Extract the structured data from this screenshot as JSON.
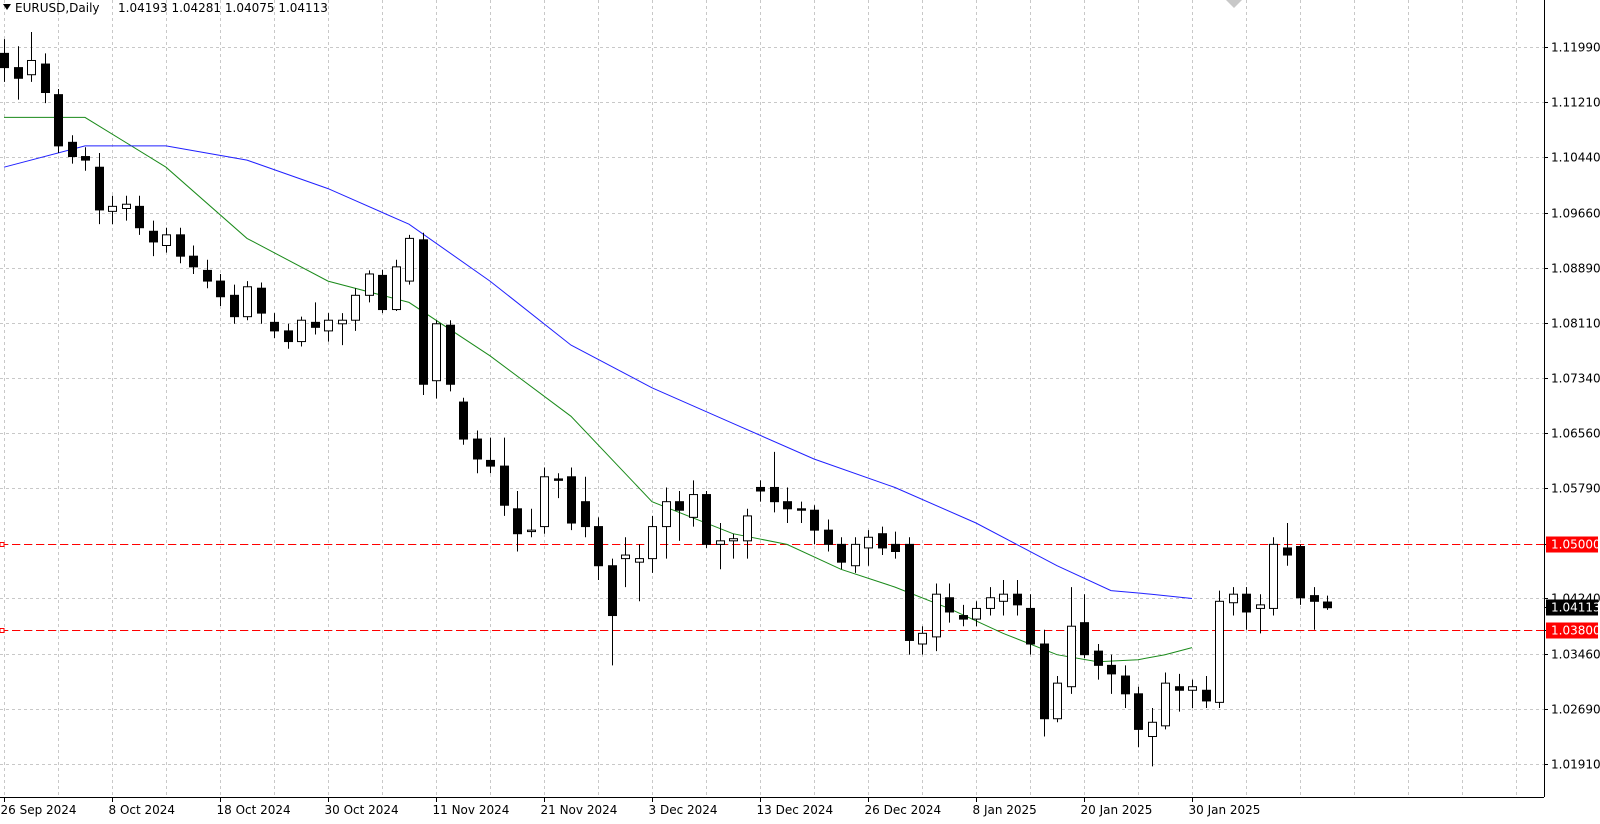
{
  "header": {
    "symbol": "EURUSD,Daily",
    "ohlc": "1.04193 1.04281 1.04075 1.04113"
  },
  "colors": {
    "background": "#ffffff",
    "grid": "#c8c8c8",
    "bull_body": "#ffffff",
    "bear_body": "#000000",
    "wick": "#000000",
    "ma_fast": "#1a8a1a",
    "ma_slow": "#2020ff",
    "level_line": "#ff0000",
    "level_tag": "#ff0000",
    "price_tag": "#000000"
  },
  "chart_data": {
    "type": "candlestick",
    "symbol": "EURUSD",
    "timeframe": "Daily",
    "ylim": [
      1.0145,
      1.1265
    ],
    "y_ticks": [
      "1.11990",
      "1.11210",
      "1.10440",
      "1.09660",
      "1.08890",
      "1.08110",
      "1.07340",
      "1.06560",
      "1.05790",
      "1.05000",
      "1.04240",
      "1.03800",
      "1.03460",
      "1.02690",
      "1.01910"
    ],
    "x_tick_labels": [
      "26 Sep 2024",
      "8 Oct 2024",
      "18 Oct 2024",
      "30 Oct 2024",
      "11 Nov 2024",
      "21 Nov 2024",
      "3 Dec 2024",
      "13 Dec 2024",
      "26 Dec 2024",
      "8 Jan 2025",
      "20 Jan 2025",
      "30 Jan 2025"
    ],
    "x_tick_index": [
      0,
      8,
      16,
      24,
      32,
      40,
      48,
      56,
      64,
      72,
      80,
      88
    ],
    "grid": true,
    "candles": [
      [
        1.119,
        1.121,
        1.115,
        1.117
      ],
      [
        1.117,
        1.12,
        1.1125,
        1.1155
      ],
      [
        1.116,
        1.122,
        1.115,
        1.118
      ],
      [
        1.1175,
        1.119,
        1.112,
        1.1135
      ],
      [
        1.1132,
        1.114,
        1.105,
        1.106
      ],
      [
        1.1065,
        1.1075,
        1.1035,
        1.1045
      ],
      [
        1.1045,
        1.1058,
        1.1025,
        1.104
      ],
      [
        1.103,
        1.105,
        1.095,
        1.097
      ],
      [
        1.0968,
        1.099,
        1.095,
        1.0975
      ],
      [
        1.0972,
        1.099,
        1.0955,
        1.0978
      ],
      [
        1.0975,
        1.099,
        1.0935,
        1.0945
      ],
      [
        1.094,
        1.0955,
        1.0905,
        1.0925
      ],
      [
        1.092,
        1.0945,
        1.091,
        1.0935
      ],
      [
        1.0935,
        1.0945,
        1.0895,
        1.0905
      ],
      [
        1.0905,
        1.092,
        1.088,
        1.089
      ],
      [
        1.0885,
        1.09,
        1.086,
        1.087
      ],
      [
        1.087,
        1.088,
        1.0835,
        1.0848
      ],
      [
        1.085,
        1.0865,
        1.081,
        1.082
      ],
      [
        1.082,
        1.087,
        1.0815,
        1.0862
      ],
      [
        1.086,
        1.0868,
        1.081,
        1.0825
      ],
      [
        1.0812,
        1.0825,
        1.079,
        1.08
      ],
      [
        1.08,
        1.081,
        1.0775,
        1.0785
      ],
      [
        1.0785,
        1.082,
        1.0778,
        1.0815
      ],
      [
        1.0812,
        1.084,
        1.0795,
        1.0805
      ],
      [
        1.08,
        1.0825,
        1.0785,
        1.0815
      ],
      [
        1.081,
        1.0825,
        1.078,
        1.0815
      ],
      [
        1.0815,
        1.086,
        1.08,
        1.085
      ],
      [
        1.085,
        1.0885,
        1.084,
        1.088
      ],
      [
        1.0878,
        1.0886,
        1.0825,
        1.083
      ],
      [
        1.083,
        1.09,
        1.0828,
        1.089
      ],
      [
        1.087,
        1.0935,
        1.0865,
        1.093
      ],
      [
        1.0928,
        1.0938,
        1.071,
        1.0725
      ],
      [
        1.073,
        1.0815,
        1.0705,
        1.081
      ],
      [
        1.0808,
        1.0815,
        1.0715,
        1.0725
      ],
      [
        1.07,
        1.0706,
        1.064,
        1.0648
      ],
      [
        1.0648,
        1.066,
        1.06,
        1.062
      ],
      [
        1.0618,
        1.065,
        1.06,
        1.061
      ],
      [
        1.061,
        1.065,
        1.054,
        1.0555
      ],
      [
        1.055,
        1.0575,
        1.049,
        1.0515
      ],
      [
        1.0518,
        1.055,
        1.051,
        1.052
      ],
      [
        1.0525,
        1.0608,
        1.0515,
        1.0595
      ],
      [
        1.0592,
        1.06,
        1.0565,
        1.059
      ],
      [
        1.0595,
        1.0608,
        1.052,
        1.053
      ],
      [
        1.056,
        1.0595,
        1.051,
        1.0525
      ],
      [
        1.0525,
        1.0538,
        1.045,
        1.047
      ],
      [
        1.047,
        1.048,
        1.033,
        1.04
      ],
      [
        1.048,
        1.051,
        1.044,
        1.0485
      ],
      [
        1.0475,
        1.05,
        1.042,
        1.048
      ],
      [
        1.048,
        1.054,
        1.046,
        1.0525
      ],
      [
        1.0525,
        1.058,
        1.048,
        1.056
      ],
      [
        1.056,
        1.0575,
        1.0505,
        1.0548
      ],
      [
        1.0538,
        1.059,
        1.0525,
        1.057
      ],
      [
        1.057,
        1.0575,
        1.0495,
        1.05
      ],
      [
        1.05,
        1.053,
        1.0465,
        1.0505
      ],
      [
        1.0505,
        1.0515,
        1.048,
        1.0508
      ],
      [
        1.0505,
        1.055,
        1.048,
        1.054
      ],
      [
        1.058,
        1.059,
        1.056,
        1.0575
      ],
      [
        1.058,
        1.063,
        1.0545,
        1.056
      ],
      [
        1.056,
        1.058,
        1.053,
        1.055
      ],
      [
        1.055,
        1.056,
        1.053,
        1.0548
      ],
      [
        1.0548,
        1.0555,
        1.05,
        1.052
      ],
      [
        1.052,
        1.0535,
        1.049,
        1.05
      ],
      [
        1.05,
        1.051,
        1.0465,
        1.0475
      ],
      [
        1.047,
        1.051,
        1.046,
        1.05
      ],
      [
        1.0495,
        1.052,
        1.047,
        1.051
      ],
      [
        1.0515,
        1.0525,
        1.0485,
        1.0495
      ],
      [
        1.05,
        1.0518,
        1.048,
        1.049
      ],
      [
        1.05,
        1.051,
        1.0345,
        1.0365
      ],
      [
        1.036,
        1.0385,
        1.0345,
        1.0375
      ],
      [
        1.037,
        1.0445,
        1.035,
        1.043
      ],
      [
        1.0425,
        1.0445,
        1.039,
        1.0405
      ],
      [
        1.04,
        1.0415,
        1.0385,
        1.0395
      ],
      [
        1.0395,
        1.042,
        1.0385,
        1.041
      ],
      [
        1.041,
        1.044,
        1.04,
        1.0425
      ],
      [
        1.042,
        1.045,
        1.04,
        1.043
      ],
      [
        1.043,
        1.045,
        1.04,
        1.0415
      ],
      [
        1.041,
        1.043,
        1.0345,
        1.036
      ],
      [
        1.036,
        1.038,
        1.023,
        1.0255
      ],
      [
        1.0255,
        1.0315,
        1.025,
        1.0305
      ],
      [
        1.03,
        1.044,
        1.029,
        1.0385
      ],
      [
        1.039,
        1.043,
        1.034,
        1.0345
      ],
      [
        1.035,
        1.036,
        1.031,
        1.033
      ],
      [
        1.033,
        1.0345,
        1.029,
        1.0318
      ],
      [
        1.0315,
        1.033,
        1.027,
        1.029
      ],
      [
        1.029,
        1.03,
        1.0215,
        1.024
      ],
      [
        1.023,
        1.027,
        1.0188,
        1.025
      ],
      [
        1.0245,
        1.032,
        1.024,
        1.0305
      ],
      [
        1.03,
        1.0318,
        1.0265,
        1.0295
      ],
      [
        1.0295,
        1.031,
        1.027,
        1.03
      ],
      [
        1.0295,
        1.0315,
        1.027,
        1.028
      ],
      [
        1.0278,
        1.0435,
        1.027,
        1.042
      ],
      [
        1.0418,
        1.044,
        1.04,
        1.043
      ],
      [
        1.043,
        1.044,
        1.038,
        1.0405
      ],
      [
        1.041,
        1.043,
        1.0375,
        1.0415
      ],
      [
        1.041,
        1.051,
        1.04,
        1.05
      ],
      [
        1.0495,
        1.053,
        1.047,
        1.0485
      ],
      [
        1.0497,
        1.05,
        1.0415,
        1.0425
      ],
      [
        1.0428,
        1.044,
        1.038,
        1.042
      ],
      [
        1.0419,
        1.0428,
        1.0408,
        1.0411
      ]
    ],
    "series": [
      {
        "points": [
          [
            0,
            1.11
          ],
          [
            6,
            1.11
          ],
          [
            12,
            1.103
          ],
          [
            18,
            1.093
          ],
          [
            24,
            1.087
          ],
          [
            30,
            1.084
          ],
          [
            36,
            1.0765
          ],
          [
            42,
            1.068
          ],
          [
            48,
            1.056
          ],
          [
            54,
            1.0515
          ],
          [
            58,
            1.05
          ],
          [
            62,
            1.0465
          ],
          [
            66,
            1.044
          ],
          [
            70,
            1.041
          ],
          [
            74,
            1.0375
          ],
          [
            78,
            1.0345
          ],
          [
            81,
            1.0335
          ],
          [
            84,
            1.0338
          ],
          [
            86,
            1.0345
          ],
          [
            88,
            1.0355
          ]
        ]
      },
      {
        "points": [
          [
            0,
            1.103
          ],
          [
            6,
            1.106
          ],
          [
            12,
            1.106
          ],
          [
            18,
            1.104
          ],
          [
            24,
            1.1
          ],
          [
            30,
            1.095
          ],
          [
            36,
            1.087
          ],
          [
            42,
            1.078
          ],
          [
            48,
            1.072
          ],
          [
            54,
            1.067
          ],
          [
            60,
            1.062
          ],
          [
            66,
            1.058
          ],
          [
            72,
            1.053
          ],
          [
            78,
            1.047
          ],
          [
            82,
            1.0435
          ],
          [
            85,
            1.043
          ],
          [
            88,
            1.0424
          ]
        ]
      }
    ],
    "levels": [
      {
        "value": 1.05,
        "label": "1.05000"
      },
      {
        "value": 1.038,
        "label": "1.03800"
      }
    ],
    "last_price": {
      "value": 1.04113,
      "label": "1.04113"
    }
  }
}
